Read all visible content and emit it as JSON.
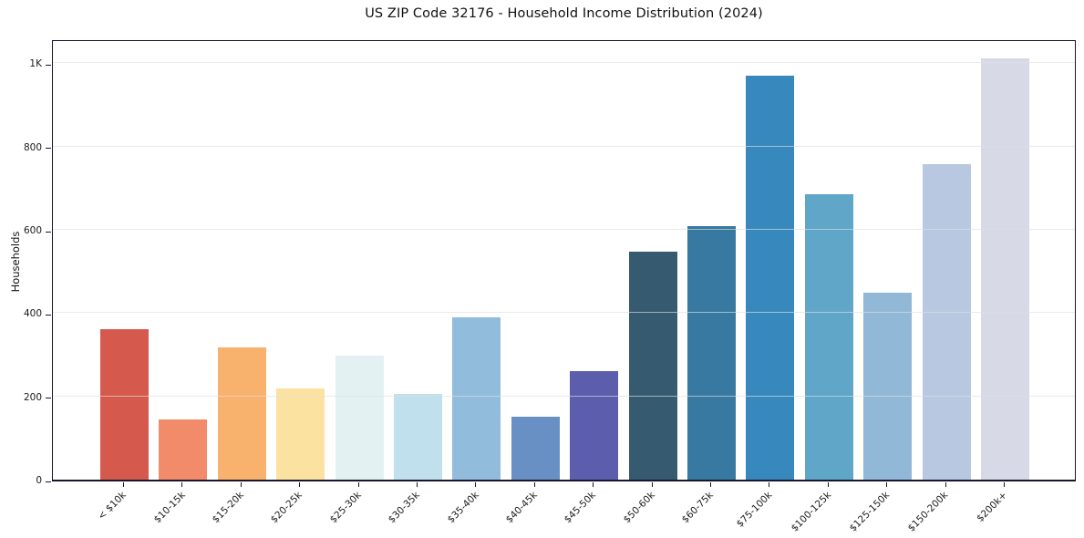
{
  "chart_data": {
    "type": "bar",
    "title": "US ZIP Code 32176 - Household Income Distribution (2024)",
    "xlabel": "",
    "ylabel": "Households",
    "ylim": [
      0,
      1060
    ],
    "grid": true,
    "legend": "none",
    "categories": [
      "< $10k",
      "$10-15k",
      "$15-20k",
      "$20-25k",
      "$25-30k",
      "$30-35k",
      "$35-40k",
      "$40-45k",
      "$45-50k",
      "$50-60k",
      "$60-75k",
      "$75-100k",
      "$100-125k",
      "$125-150k",
      "$150-200k",
      "$200k+"
    ],
    "values": [
      362,
      145,
      317,
      220,
      297,
      206,
      389,
      152,
      260,
      547,
      608,
      971,
      686,
      448,
      758,
      1011
    ],
    "bar_colors": [
      "#d6594e",
      "#f28b6a",
      "#f9b16e",
      "#fce2a0",
      "#e3f1f3",
      "#bfe0ec",
      "#92bcdc",
      "#6890c4",
      "#5c5dac",
      "#365b70",
      "#3779a1",
      "#3789bd",
      "#5fa6c9",
      "#92b8d8",
      "#b7c8e0",
      "#d7d9e7"
    ],
    "yticks": [
      {
        "value": 0,
        "label": "0"
      },
      {
        "value": 200,
        "label": "200"
      },
      {
        "value": 400,
        "label": "400"
      },
      {
        "value": 600,
        "label": "600"
      },
      {
        "value": 800,
        "label": "800"
      },
      {
        "value": 1000,
        "label": "1K"
      }
    ]
  },
  "colors": {
    "background": "#ffffff",
    "axis": "#16162e",
    "gridline": "#dfdfdf",
    "text": "#1a1a1a"
  }
}
